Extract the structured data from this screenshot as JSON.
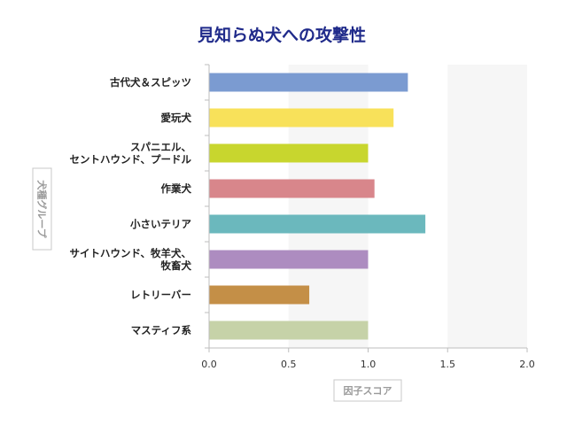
{
  "chart_data": {
    "type": "bar",
    "orientation": "horizontal",
    "title": "見知らぬ犬への攻撃性",
    "xlabel": "因子スコア",
    "ylabel": "犬種グループ",
    "categories": [
      [
        "古代犬＆スピッツ"
      ],
      [
        "愛玩犬"
      ],
      [
        "スパニエル、",
        "セントハウンド、プードル"
      ],
      [
        "作業犬"
      ],
      [
        "小さいテリア"
      ],
      [
        "サイトハウンド、牧羊犬、",
        "牧畜犬"
      ],
      [
        "レトリーバー"
      ],
      [
        "マスティフ系"
      ]
    ],
    "values": [
      1.25,
      1.16,
      1.0,
      1.04,
      1.36,
      1.0,
      0.63,
      1.0
    ],
    "colors": [
      "#7b9bd1",
      "#f8e15a",
      "#c8d62e",
      "#d8868b",
      "#6bb8bd",
      "#ad8cc0",
      "#c48f47",
      "#c6d2a8"
    ],
    "xlim": [
      0,
      2.0
    ],
    "xticks": [
      "0.0",
      "0.5",
      "1.0",
      "1.5",
      "2.0"
    ],
    "alternating_band_color": "#f6f6f6",
    "grid": false
  }
}
